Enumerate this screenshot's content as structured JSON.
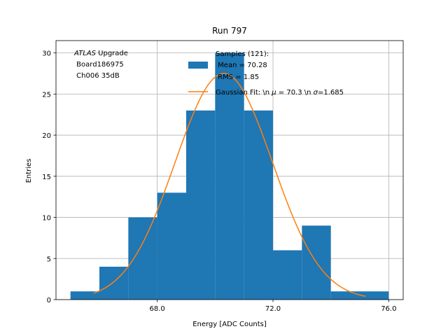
{
  "chart_data": {
    "type": "bar",
    "title": "Run 797",
    "xlabel": "Energy [ADC Counts]",
    "ylabel": "Entries",
    "xlim": [
      64.5,
      76.5
    ],
    "ylim": [
      0,
      31.5
    ],
    "xticks": [
      68,
      72,
      76
    ],
    "xtick_labels": [
      "68.0",
      "72.0",
      "76.0"
    ],
    "yticks": [
      0,
      5,
      10,
      15,
      20,
      25,
      30
    ],
    "ytick_labels": [
      "0",
      "5",
      "10",
      "15",
      "20",
      "25",
      "30"
    ],
    "grid": true,
    "histogram": {
      "bin_edges": [
        65,
        66,
        67,
        68,
        69,
        70,
        71,
        72,
        73,
        74,
        75,
        76
      ],
      "counts": [
        1,
        4,
        10,
        13,
        23,
        30,
        23,
        6,
        9,
        1,
        1
      ],
      "color": "#1f77b4"
    },
    "gaussian_fit": {
      "mu": 70.3,
      "sigma": 1.685,
      "amplitude": 27.5,
      "x_range": [
        65.8,
        75.2
      ],
      "color": "#ff7f0e"
    },
    "annotation": {
      "line1_italic": "ATLAS",
      "line1_rest": " Upgrade",
      "line2": " Board186975",
      "line3": " Ch006 35dB"
    },
    "legend": {
      "position": "upper-right",
      "hist_line1": "Samples (121):",
      "hist_line2": " Mean = 70.28",
      "hist_line3": " RMS = 1.85",
      "fit_label_prefix": "Gaussian Fit: \\n ",
      "fit_mu_symbol": "μ",
      "fit_label_mid": " = 70.3 \\n ",
      "fit_sigma_symbol": "σ",
      "fit_label_end": "=1.685"
    }
  }
}
